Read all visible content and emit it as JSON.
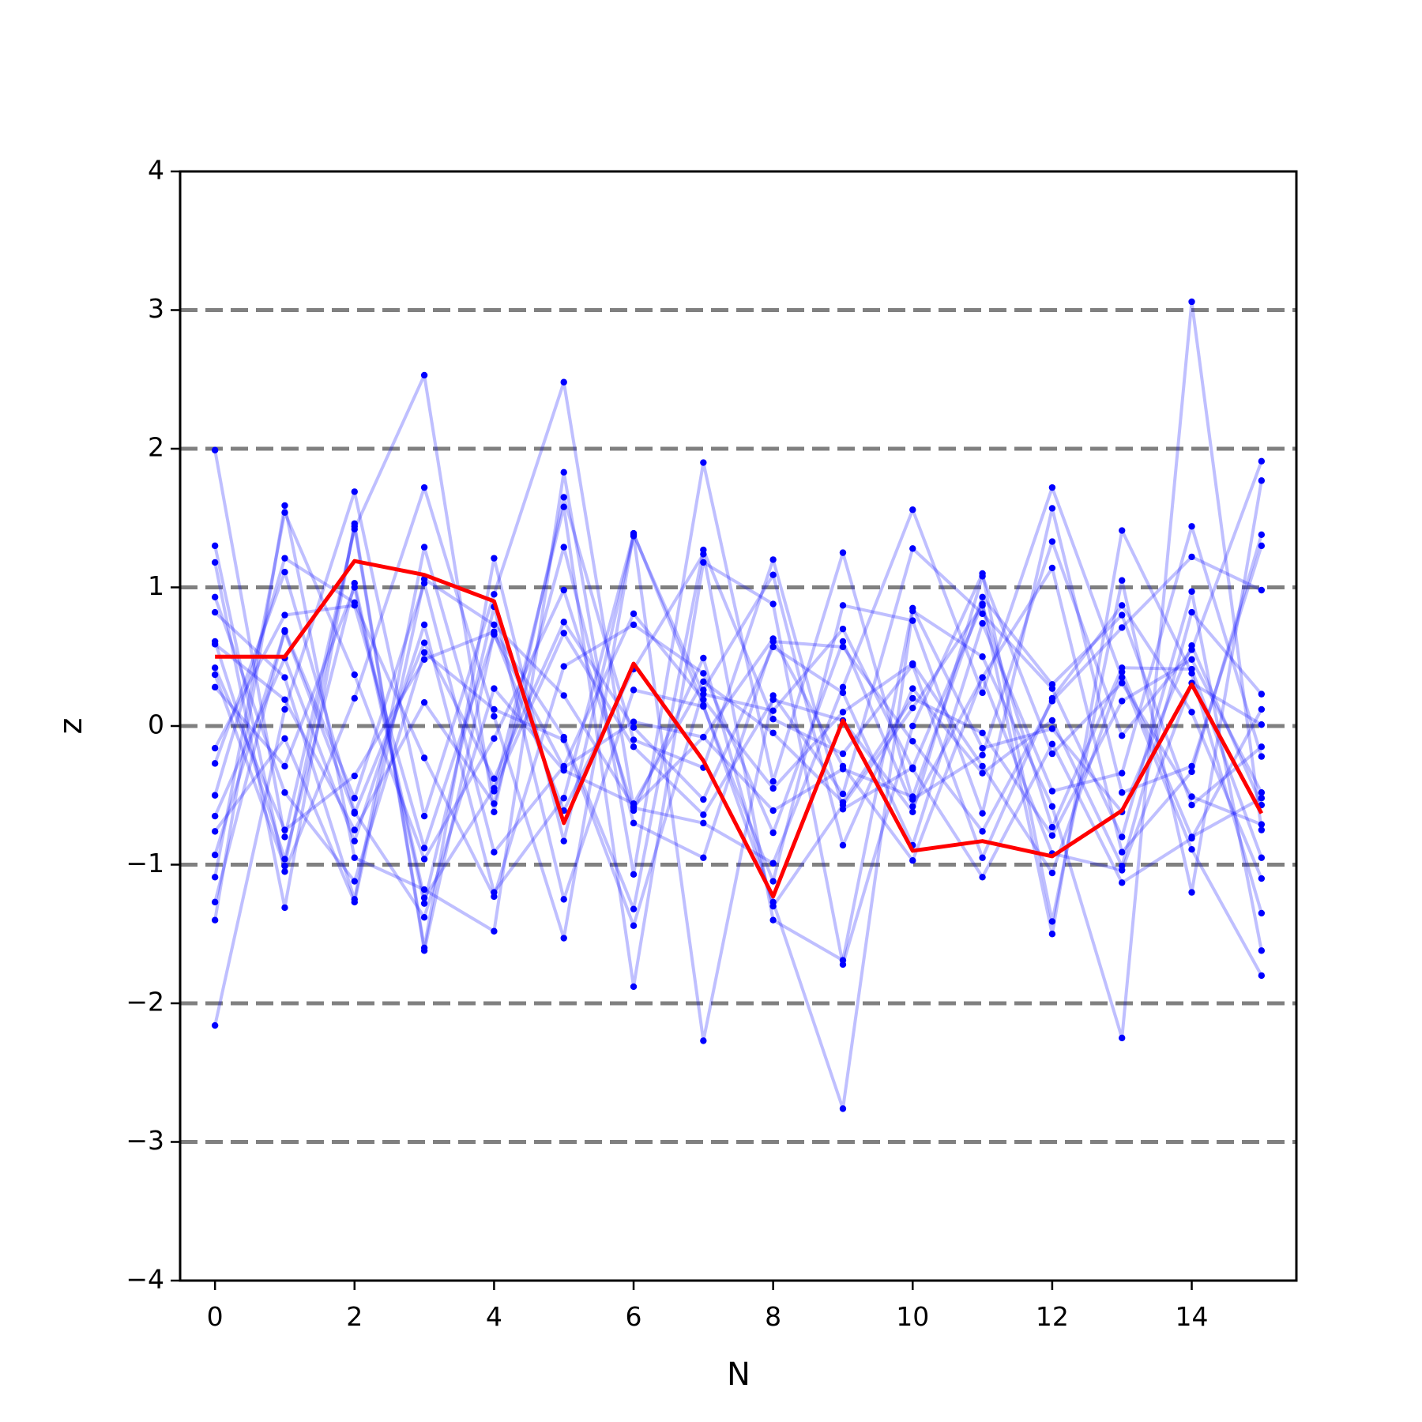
{
  "chart_data": {
    "type": "line",
    "title": "",
    "xlabel": "N",
    "ylabel": "z",
    "xlim": [
      -0.5,
      15.5
    ],
    "ylim": [
      -4,
      4
    ],
    "xticks": [
      0,
      2,
      4,
      6,
      8,
      10,
      12,
      14
    ],
    "yticks": [
      -4,
      -3,
      -2,
      -1,
      0,
      1,
      2,
      3,
      4
    ],
    "ytick_labels": [
      "−4",
      "−3",
      "−2",
      "−1",
      "0",
      "1",
      "2",
      "3",
      "4"
    ],
    "reference_lines_y": [
      -3,
      -2,
      -1,
      0,
      1,
      2,
      3
    ],
    "reference_line_style": "dashed",
    "grid": false,
    "legend": "none",
    "colors": {
      "background_series": "#0000ff",
      "highlight_series": "#ff0000",
      "reference_lines": "#808080"
    },
    "x": [
      0,
      1,
      2,
      3,
      4,
      5,
      6,
      7,
      8,
      9,
      10,
      11,
      12,
      13,
      14,
      15
    ],
    "highlight_series": [
      0.5,
      0.5,
      1.19,
      1.09,
      0.9,
      -0.7,
      0.45,
      -0.25,
      -1.23,
      0.04,
      -0.9,
      -0.83,
      -0.94,
      -0.61,
      0.3,
      -0.63
    ],
    "background_series": [
      [
        1.99,
        -0.8,
        1.42,
        2.53,
        -0.62,
        1.65,
        -0.1,
        -0.3,
        1.2,
        -0.6,
        -0.3,
        0.88,
        -1.5,
        1.41,
        0.38,
        -1.35
      ],
      [
        -2.16,
        0.12,
        1.69,
        -0.65,
        0.95,
        2.48,
        -0.59,
        -0.7,
        -0.99,
        0.28,
        1.56,
        0.24,
        1.72,
        0.35,
        -0.89,
        -1.8
      ],
      [
        1.3,
        -1.05,
        0.2,
        1.72,
        0.07,
        -1.53,
        1.39,
        0.15,
        -1.27,
        -2.76,
        0.83,
        0.5,
        -0.58,
        -2.25,
        3.06,
        -0.75
      ],
      [
        -1.4,
        1.59,
        -0.95,
        -1.18,
        -1.48,
        1.83,
        -1.07,
        1.9,
        -0.4,
        1.25,
        -0.53,
        -0.21,
        1.33,
        -0.07,
        0.55,
        1.91
      ],
      [
        1.18,
        -1.31,
        1.46,
        -1.6,
        1.21,
        -0.83,
        1.37,
        -2.27,
        0.22,
        -0.49,
        1.28,
        0.81,
        0.27,
        -0.8,
        0.97,
        -1.62
      ],
      [
        0.82,
        0.35,
        -1.25,
        1.29,
        -0.47,
        1.58,
        -1.88,
        1.18,
        0.88,
        -1.72,
        0.0,
        1.1,
        -1.41,
        1.05,
        -1.2,
        1.77
      ],
      [
        -0.5,
        1.21,
        0.89,
        -0.23,
        -1.23,
        0.43,
        0.73,
        0.38,
        -0.77,
        0.61,
        -0.58,
        0.35,
        1.14,
        -0.91,
        -0.33,
        1.38
      ],
      [
        0.42,
        -0.75,
        -0.36,
        0.48,
        0.68,
        -0.08,
        -1.32,
        1.27,
        0.05,
        -0.2,
        0.44,
        -0.95,
        0.2,
        0.87,
        0.1,
        -1.1
      ],
      [
        -0.93,
        0.68,
        -0.63,
        0.6,
        -0.38,
        0.75,
        -0.01,
        -0.53,
        0.57,
        0.24,
        -0.86,
        0.74,
        -0.47,
        -0.34,
        1.44,
        -0.22
      ],
      [
        0.28,
        -0.29,
        1.0,
        -1.28,
        0.86,
        -1.25,
        0.26,
        0.14,
        -1.12,
        0.87,
        0.76,
        -0.63,
        1.57,
        -0.48,
        -0.29,
        1.3
      ],
      [
        -0.27,
        1.11,
        -0.62,
        -1.38,
        0.27,
        -0.32,
        -0.56,
        0.32,
        -0.05,
        -0.55,
        0.2,
        -0.05,
        -0.79,
        0.18,
        0.48,
        -0.48
      ],
      [
        0.59,
        0.19,
        -0.75,
        0.17,
        -0.56,
        1.29,
        -0.7,
        -0.95,
        0.61,
        0.57,
        -0.11,
        -0.76,
        0.18,
        0.71,
        1.22,
        0.98
      ],
      [
        -0.65,
        0.49,
        -0.83,
        0.73,
        -1.2,
        -0.52,
        1.38,
        0.23,
        0.11,
        0.7,
        -0.31,
        -1.09,
        -0.13,
        -1.13,
        -0.81,
        0.12
      ],
      [
        -1.09,
        1.54,
        0.37,
        -0.96,
        -0.09,
        0.98,
        -0.61,
        0.49,
        -1.3,
        -0.57,
        0.13,
        0.87,
        -0.73,
        0.42,
        0.41,
        -0.95
      ],
      [
        0.93,
        -0.48,
        -1.12,
        0.53,
        0.12,
        -0.1,
        -1.44,
        0.26,
        1.09,
        -0.86,
        0.27,
        -0.34,
        0.04,
        -1.01,
        0.82,
        0.23
      ],
      [
        -0.16,
        0.8,
        0.87,
        -0.88,
        0.66,
        -0.3,
        0.03,
        -0.08,
        -0.61,
        -0.31,
        -0.51,
        0.93,
        0.3,
        0.8,
        -0.57,
        -0.15
      ],
      [
        0.37,
        -1.01,
        1.44,
        -1.62,
        0.67,
        -0.61,
        0.41,
        1.24,
        -1.4,
        -1.69,
        0.85,
        -0.16,
        -0.02,
        -0.62,
        0.58,
        -0.57
      ],
      [
        -0.76,
        -0.09,
        -1.27,
        1.06,
        0.73,
        0.22,
        -0.58,
        -0.08,
        0.63,
        -0.29,
        -0.97,
        0.35,
        -0.92,
        -1.04,
        0.31,
        0.01
      ],
      [
        0.61,
        -0.96,
        1.03,
        -1.24,
        -0.45,
        0.67,
        -0.15,
        -0.64,
        0.19,
        0.04,
        -0.62,
        1.08,
        -0.2,
        0.31,
        -0.51,
        -0.71
      ],
      [
        -1.27,
        0.69,
        -0.52,
        1.03,
        -0.91,
        -0.29,
        0.81,
        0.19,
        -0.45,
        0.1,
        0.45,
        -0.29,
        -1.06,
        0.39,
        -0.8,
        -0.52
      ]
    ]
  }
}
